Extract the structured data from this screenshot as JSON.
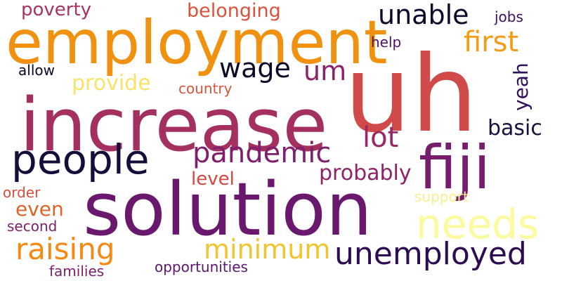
{
  "words": {
    "uh": {
      "text": "uh",
      "color": "#d14a4a"
    },
    "increase": {
      "text": "increase",
      "color": "#a3305f"
    },
    "solution": {
      "text": "solution",
      "color": "#6a176e"
    },
    "employment": {
      "text": "employment",
      "color": "#f0920f"
    },
    "fiji": {
      "text": "fiji",
      "color": "#771d6d"
    },
    "people": {
      "text": "people",
      "color": "#150d3a"
    },
    "needs": {
      "text": "needs",
      "color": "#fbfa9c"
    },
    "unemployed": {
      "text": "unemployed",
      "color": "#2c0c52"
    },
    "raising": {
      "text": "raising",
      "color": "#f48a14"
    },
    "pandemic": {
      "text": "pandemic",
      "color": "#7f1f6d"
    },
    "minimum": {
      "text": "minimum",
      "color": "#f2c52f"
    },
    "unable": {
      "text": "unable",
      "color": "#0f0a2c"
    },
    "first": {
      "text": "first",
      "color": "#f59c16"
    },
    "wage": {
      "text": "wage",
      "color": "#0c0826"
    },
    "um": {
      "text": "um",
      "color": "#8c2369"
    },
    "lot": {
      "text": "lot",
      "color": "#9a2864"
    },
    "probably": {
      "text": "probably",
      "color": "#8e2369"
    },
    "basic": {
      "text": "basic",
      "color": "#18103d"
    },
    "provide": {
      "text": "provide",
      "color": "#f7e36a"
    },
    "even": {
      "text": "even",
      "color": "#e1622b"
    },
    "belonging": {
      "text": "belonging",
      "color": "#d9533c"
    },
    "poverty": {
      "text": "poverty",
      "color": "#a83360"
    },
    "level": {
      "text": "level",
      "color": "#d4473f"
    },
    "yeah": {
      "text": "yeah",
      "color": "#30105a"
    },
    "country": {
      "text": "country",
      "color": "#d6553a"
    },
    "opportunities": {
      "text": "opportunities",
      "color": "#5a1670"
    },
    "families": {
      "text": "families",
      "color": "#7a1f6c"
    },
    "second": {
      "text": "second",
      "color": "#7c206d"
    },
    "order": {
      "text": "order",
      "color": "#d84e39"
    },
    "allow": {
      "text": "allow",
      "color": "#0a0822"
    },
    "jobs": {
      "text": "jobs",
      "color": "#3d0f5e"
    },
    "help": {
      "text": "help",
      "color": "#4f1466"
    },
    "support": {
      "text": "support",
      "color": "#f9ef8f"
    }
  }
}
